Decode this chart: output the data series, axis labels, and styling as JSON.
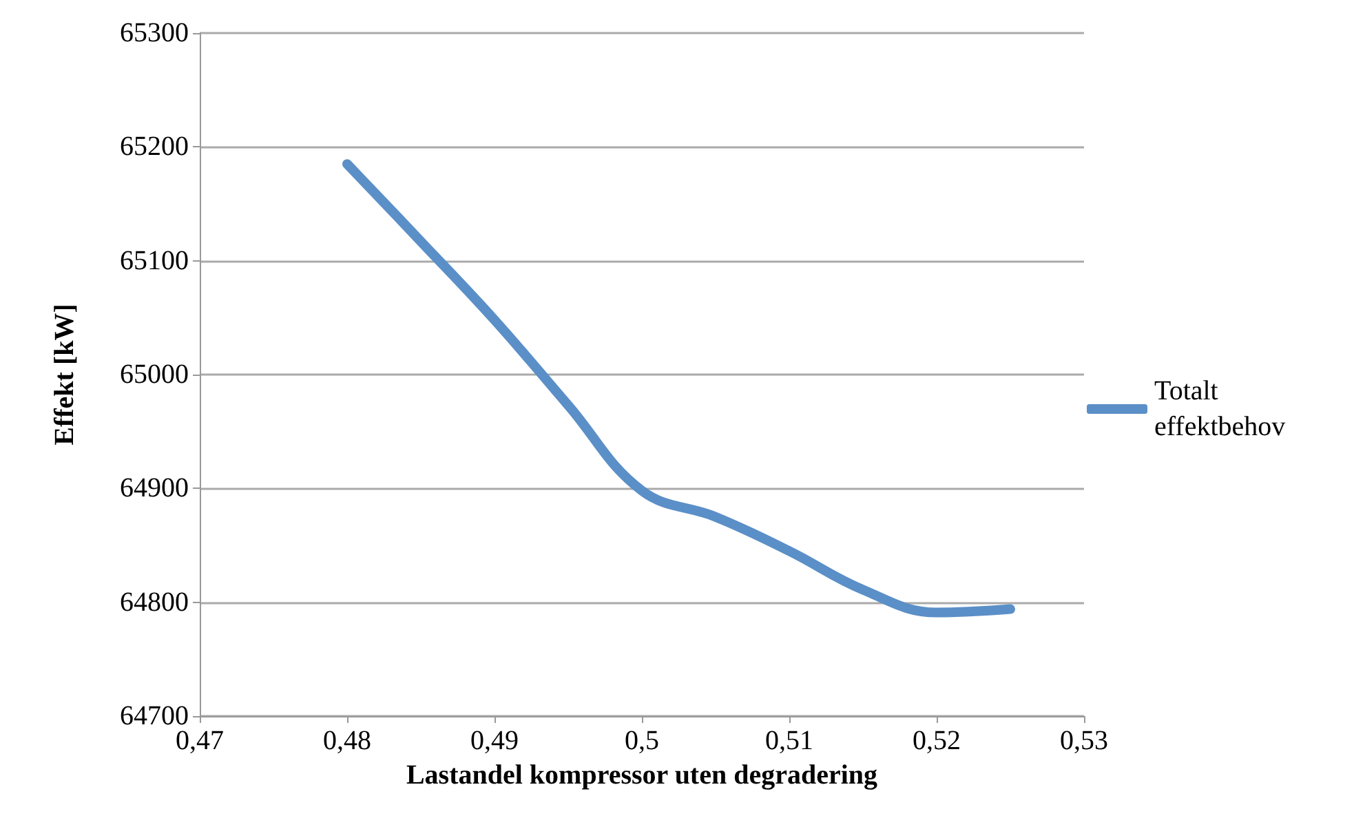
{
  "chart_data": {
    "type": "line",
    "xlabel": "Lastandel kompressor uten degradering",
    "ylabel": "Effekt [kW]",
    "x": [
      0.48,
      0.485,
      0.49,
      0.495,
      0.5,
      0.505,
      0.51,
      0.515,
      0.52,
      0.525
    ],
    "series": [
      {
        "name": "Totalt effektbehov",
        "color": "#5b8fc7",
        "values": [
          65185,
          65117,
          65048,
          64973,
          64898,
          64875,
          64845,
          64811,
          64791,
          64794
        ]
      }
    ],
    "xlim": [
      0.47,
      0.53
    ],
    "xticks": [
      {
        "value": 0.47,
        "label": "0,47"
      },
      {
        "value": 0.48,
        "label": "0,48"
      },
      {
        "value": 0.49,
        "label": "0,49"
      },
      {
        "value": 0.5,
        "label": "0,5"
      },
      {
        "value": 0.51,
        "label": "0,51"
      },
      {
        "value": 0.52,
        "label": "0,52"
      },
      {
        "value": 0.53,
        "label": "0,53"
      }
    ],
    "ylim": [
      64700,
      65300
    ],
    "yticks": [
      64700,
      64800,
      64900,
      65000,
      65100,
      65200,
      65300
    ],
    "grid": "y",
    "legend": "right",
    "line_style": "solid"
  }
}
